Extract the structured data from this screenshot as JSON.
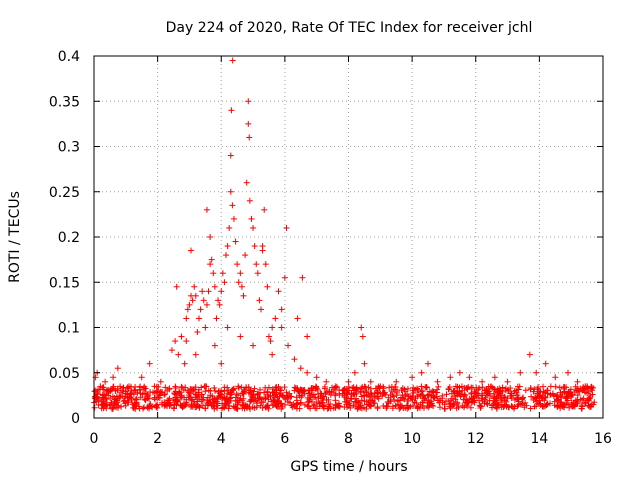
{
  "colors": {
    "series": "#ff0000",
    "axis": "#000000",
    "grid": "#a0a0a0",
    "background": "#ffffff"
  },
  "chart_data": {
    "type": "scatter",
    "title": "Day 224 of 2020, Rate Of TEC Index for receiver jchl",
    "xlabel": "GPS time / hours",
    "ylabel": "ROTI / TECUs",
    "xlim": [
      0,
      16
    ],
    "ylim": [
      0,
      0.4
    ],
    "grid": true,
    "marker": "plus",
    "x_ticks": [
      0,
      2,
      4,
      6,
      8,
      10,
      12,
      14,
      16
    ],
    "x_tick_labels": [
      "0",
      "2",
      "4",
      "6",
      "8",
      "10",
      "12",
      "14",
      "16"
    ],
    "y_ticks": [
      0,
      0.05,
      0.1,
      0.15,
      0.2,
      0.25,
      0.3,
      0.35,
      0.4
    ],
    "y_tick_labels": [
      "0",
      "0.05",
      "0.1",
      "0.15",
      "0.2",
      "0.25",
      "0.3",
      "0.35",
      "0.4"
    ],
    "x_range_of_data": [
      0,
      15.75
    ],
    "baseline_level": [
      0.01,
      0.035
    ],
    "series": [
      {
        "name": "ROTI",
        "points": [
          [
            0.05,
            0.045
          ],
          [
            0.1,
            0.05
          ],
          [
            0.2,
            0.035
          ],
          [
            0.35,
            0.04
          ],
          [
            0.5,
            0.03
          ],
          [
            0.6,
            0.045
          ],
          [
            0.75,
            0.055
          ],
          [
            0.9,
            0.03
          ],
          [
            1.1,
            0.035
          ],
          [
            1.3,
            0.03
          ],
          [
            1.5,
            0.045
          ],
          [
            1.75,
            0.06
          ],
          [
            1.9,
            0.035
          ],
          [
            2.1,
            0.04
          ],
          [
            2.3,
            0.03
          ],
          [
            2.45,
            0.075
          ],
          [
            2.55,
            0.085
          ],
          [
            2.65,
            0.07
          ],
          [
            2.75,
            0.09
          ],
          [
            2.85,
            0.06
          ],
          [
            2.9,
            0.11
          ],
          [
            2.95,
            0.12
          ],
          [
            3.0,
            0.125
          ],
          [
            3.05,
            0.135
          ],
          [
            3.1,
            0.13
          ],
          [
            3.15,
            0.145
          ],
          [
            3.2,
            0.135
          ],
          [
            3.25,
            0.095
          ],
          [
            3.3,
            0.11
          ],
          [
            3.35,
            0.12
          ],
          [
            3.4,
            0.14
          ],
          [
            3.45,
            0.13
          ],
          [
            3.5,
            0.1
          ],
          [
            3.55,
            0.125
          ],
          [
            3.6,
            0.14
          ],
          [
            3.65,
            0.17
          ],
          [
            3.7,
            0.175
          ],
          [
            3.75,
            0.16
          ],
          [
            3.8,
            0.145
          ],
          [
            3.85,
            0.11
          ],
          [
            3.9,
            0.13
          ],
          [
            3.95,
            0.125
          ],
          [
            4.0,
            0.14
          ],
          [
            4.05,
            0.16
          ],
          [
            4.1,
            0.15
          ],
          [
            4.15,
            0.18
          ],
          [
            4.2,
            0.19
          ],
          [
            4.25,
            0.21
          ],
          [
            4.3,
            0.25
          ],
          [
            4.35,
            0.235
          ],
          [
            4.4,
            0.22
          ],
          [
            4.45,
            0.195
          ],
          [
            4.5,
            0.17
          ],
          [
            4.55,
            0.15
          ],
          [
            4.6,
            0.16
          ],
          [
            4.65,
            0.145
          ],
          [
            4.7,
            0.135
          ],
          [
            4.75,
            0.18
          ],
          [
            4.8,
            0.26
          ],
          [
            4.85,
            0.325
          ],
          [
            4.9,
            0.24
          ],
          [
            4.95,
            0.22
          ],
          [
            5.0,
            0.21
          ],
          [
            5.05,
            0.19
          ],
          [
            5.1,
            0.17
          ],
          [
            5.15,
            0.16
          ],
          [
            5.2,
            0.13
          ],
          [
            5.25,
            0.12
          ],
          [
            5.3,
            0.185
          ],
          [
            5.35,
            0.23
          ],
          [
            5.4,
            0.17
          ],
          [
            5.45,
            0.145
          ],
          [
            5.5,
            0.09
          ],
          [
            5.55,
            0.085
          ],
          [
            5.6,
            0.07
          ],
          [
            5.7,
            0.11
          ],
          [
            5.8,
            0.14
          ],
          [
            5.9,
            0.12
          ],
          [
            6.0,
            0.155
          ],
          [
            6.1,
            0.08
          ],
          [
            6.3,
            0.065
          ],
          [
            6.4,
            0.11
          ],
          [
            6.5,
            0.055
          ],
          [
            6.7,
            0.05
          ],
          [
            7.0,
            0.045
          ],
          [
            7.3,
            0.04
          ],
          [
            7.6,
            0.035
          ],
          [
            8.0,
            0.04
          ],
          [
            8.2,
            0.05
          ],
          [
            8.4,
            0.1
          ],
          [
            8.45,
            0.09
          ],
          [
            8.5,
            0.06
          ],
          [
            8.7,
            0.04
          ],
          [
            9.0,
            0.035
          ],
          [
            9.5,
            0.04
          ],
          [
            10.0,
            0.045
          ],
          [
            10.3,
            0.05
          ],
          [
            10.5,
            0.06
          ],
          [
            10.8,
            0.04
          ],
          [
            11.2,
            0.045
          ],
          [
            11.5,
            0.05
          ],
          [
            11.8,
            0.045
          ],
          [
            12.2,
            0.04
          ],
          [
            12.6,
            0.045
          ],
          [
            13.0,
            0.04
          ],
          [
            13.4,
            0.05
          ],
          [
            13.7,
            0.07
          ],
          [
            13.9,
            0.05
          ],
          [
            14.2,
            0.06
          ],
          [
            14.5,
            0.045
          ],
          [
            14.9,
            0.05
          ],
          [
            15.2,
            0.04
          ],
          [
            15.5,
            0.035
          ],
          [
            2.6,
            0.145
          ],
          [
            3.05,
            0.185
          ],
          [
            3.55,
            0.23
          ],
          [
            3.65,
            0.2
          ],
          [
            4.0,
            0.06
          ],
          [
            4.2,
            0.1
          ],
          [
            4.3,
            0.29
          ],
          [
            4.32,
            0.34
          ],
          [
            4.36,
            0.395
          ],
          [
            4.85,
            0.35
          ],
          [
            4.88,
            0.31
          ],
          [
            5.3,
            0.19
          ],
          [
            6.05,
            0.21
          ],
          [
            6.55,
            0.155
          ],
          [
            5.9,
            0.1
          ],
          [
            3.8,
            0.08
          ],
          [
            3.2,
            0.07
          ],
          [
            2.9,
            0.085
          ],
          [
            4.6,
            0.09
          ],
          [
            5.0,
            0.08
          ],
          [
            5.6,
            0.1
          ],
          [
            6.7,
            0.09
          ]
        ]
      }
    ]
  }
}
